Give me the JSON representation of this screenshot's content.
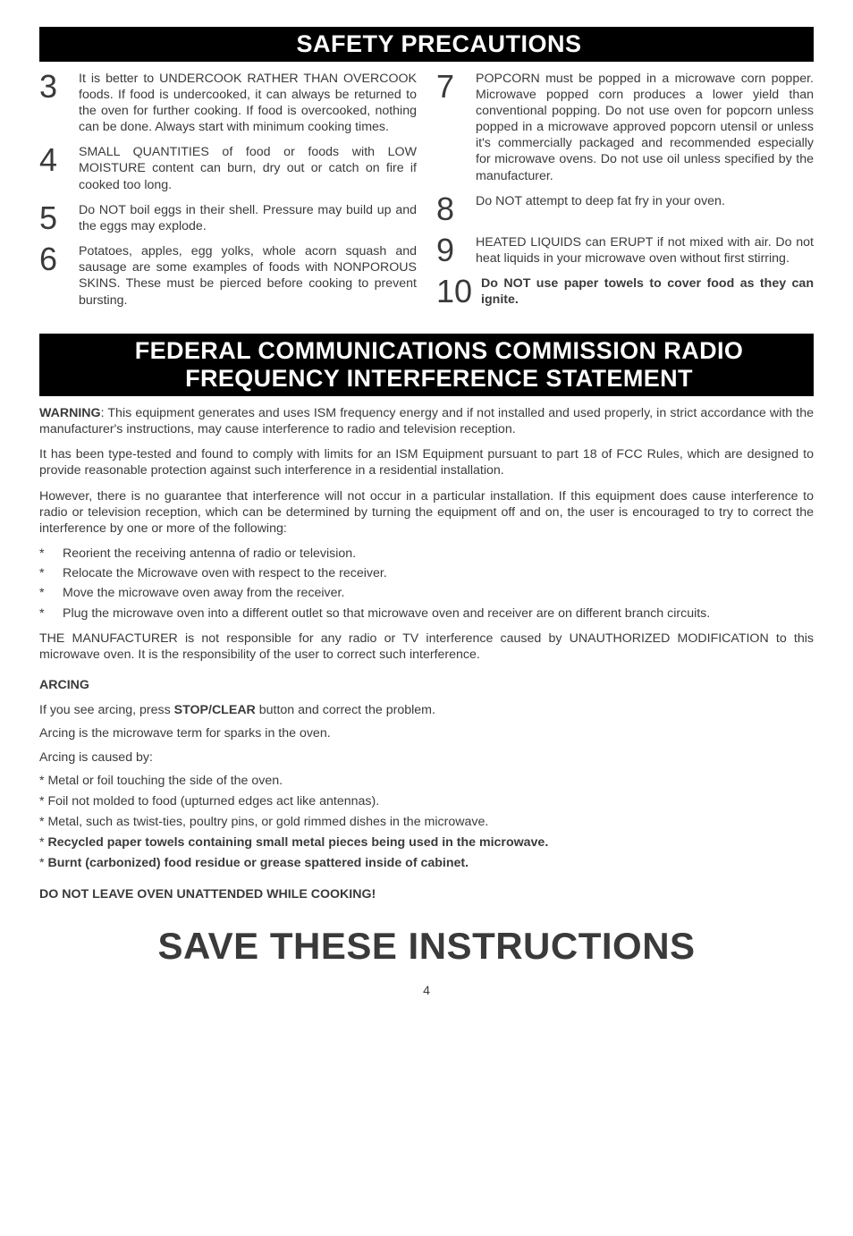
{
  "colors": {
    "background": "#ffffff",
    "text": "#3a3a3a",
    "banner_bg": "#000000",
    "banner_fg": "#ffffff"
  },
  "typography": {
    "body_family": "Arial, Helvetica, sans-serif",
    "body_size_pt": 11,
    "banner_size_pt": 20,
    "big_num_size_pt": 27,
    "giant_size_pt": 31
  },
  "banner1": "SAFETY PRECAUTIONS",
  "left_items": [
    {
      "num": "3",
      "text": "It is better to UNDERCOOK RATHER THAN OVERCOOK foods. If food is undercooked, it can always be returned to the oven for further cooking. If food is overcooked, nothing can be done. Always start with minimum cooking times."
    },
    {
      "num": "4",
      "text": "SMALL QUANTITIES of food or foods with LOW MOISTURE content can burn, dry out or catch on fire if cooked too long."
    },
    {
      "num": "5",
      "text": "Do NOT boil eggs in their shell. Pressure may build up and the eggs may explode."
    },
    {
      "num": "6",
      "text": "Potatoes, apples, egg yolks, whole acorn squash and sausage are some examples of foods with NONPOROUS SKINS. These must be pierced before cooking to prevent bursting."
    }
  ],
  "right_items": [
    {
      "num": "7",
      "text": "POPCORN must be popped in a microwave corn popper. Microwave popped corn produces a lower yield than conventional popping. Do not use oven for popcorn unless popped in a microwave approved popcorn utensil or unless it's commercially packaged and recommended especially for microwave ovens. Do not use oil unless specified by the manufacturer."
    },
    {
      "num": "8",
      "text": "Do NOT attempt to deep fat fry in your oven."
    },
    {
      "num": "9",
      "text": "HEATED LIQUIDS can ERUPT if not mixed with air. Do not heat liquids in your microwave oven without first stirring."
    },
    {
      "num": "10",
      "text_bold": "Do NOT use paper towels to cover food as they can ignite."
    }
  ],
  "banner2_line1": "FEDERAL COMMUNICATIONS COMMISSION RADIO",
  "banner2_line2": "FREQUENCY INTERFERENCE STATEMENT",
  "fcc": {
    "warning_label": "WARNING",
    "warning_rest": ": This equipment generates and uses ISM frequency energy and if not installed and used properly, in strict accordance with the manufacturer's instructions, may cause interference to radio and television reception.",
    "p2": "It has been type-tested and found to comply with limits for an ISM Equipment pursuant to part 18 of FCC Rules, which are designed to provide reasonable protection against such interference in a residential installation.",
    "p3": "However, there is no guarantee that interference will not occur in a particular installation. If this equipment does cause interference to radio or television reception, which can be determined by turning the equipment off and on, the user is encouraged to try to correct the interference by one or more of the following:",
    "bullets": [
      "Reorient the receiving antenna of radio or television.",
      "Relocate the Microwave oven with respect to the receiver.",
      "Move the microwave oven away from the receiver.",
      "Plug the microwave oven into a different outlet so that microwave oven and receiver are on different branch circuits."
    ],
    "p4": "THE MANUFACTURER is not responsible for any radio or TV interference caused by UNAUTHORIZED MODIFICATION to this microwave oven. It is the responsibility of the user to correct such interference."
  },
  "arcing": {
    "heading": "ARCING",
    "l1_pre": "If you see arcing, press ",
    "l1_bold": "STOP/CLEAR",
    "l1_post": " button and correct the problem.",
    "l2": "Arcing is the microwave term for sparks in the oven.",
    "l3": "Arcing is caused by:",
    "stars_plain": [
      "* Metal or foil touching the side of the oven.",
      "* Foil not molded to food (upturned edges act like antennas).",
      "* Metal, such as twist-ties, poultry pins, or gold rimmed dishes in the microwave."
    ],
    "stars_bold": [
      "Recycled paper towels containing small metal pieces being used in the microwave.",
      "Burnt (carbonized) food residue or grease spattered inside of cabinet."
    ]
  },
  "final_bold": "DO NOT LEAVE OVEN UNATTENDED WHILE COOKING!",
  "giant": "SAVE THESE INSTRUCTIONS",
  "page_num": "4"
}
